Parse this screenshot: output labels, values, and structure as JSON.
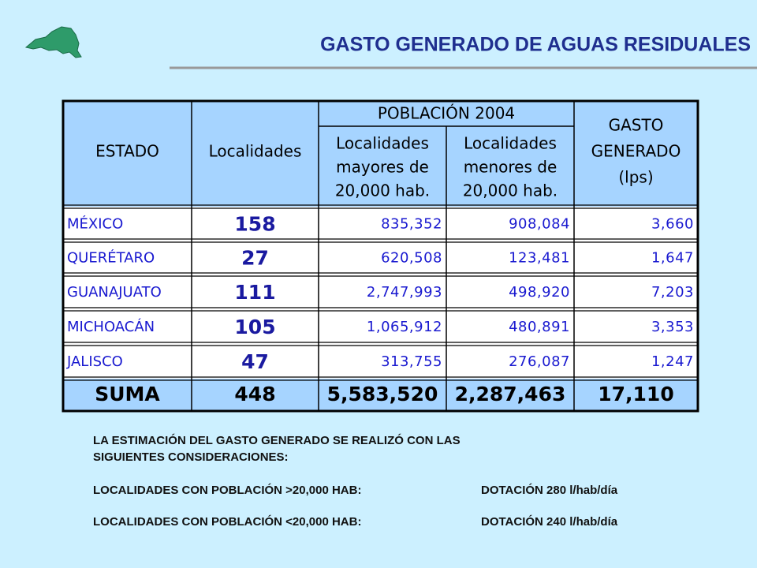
{
  "header": {
    "title": "GASTO GENERADO DE AGUAS RESIDUALES"
  },
  "table": {
    "columns": {
      "estado": "ESTADO",
      "localidades": "Localidades",
      "poblacion": "POBLACIÓN 2004",
      "mayores": [
        "Localidades",
        "mayores de",
        "20,000 hab."
      ],
      "menores": [
        "Localidades",
        "menores de",
        "20,000 hab."
      ],
      "gasto": [
        "GASTO",
        "GENERADO",
        "(lps)"
      ]
    },
    "rows": [
      [
        "MÉXICO",
        "158",
        "835,352",
        "908,084",
        "3,660"
      ],
      [
        "QUERÉTARO",
        "27",
        "620,508",
        "123,481",
        "1,647"
      ],
      [
        "GUANAJUATO",
        "111",
        "2,747,993",
        "498,920",
        "7,203"
      ],
      [
        "MICHOACÁN",
        "105",
        "1,065,912",
        "480,891",
        "3,353"
      ],
      [
        "JALISCO",
        "47",
        "313,755",
        "276,087",
        "1,247"
      ]
    ],
    "total": [
      "SUMA",
      "448",
      "5,583,520",
      "2,287,463",
      "17,110"
    ]
  },
  "notes": {
    "intro": [
      "LA ESTIMACIÓN DEL GASTO GENERADO SE REALIZÓ CON LAS",
      "SIGUIENTES CONSIDERACIONES:"
    ],
    "items": [
      [
        "LOCALIDADES CON POBLACIÓN >20,000 HAB:",
        "DOTACIÓN 280 l/hab/día"
      ],
      [
        "LOCALIDADES CON POBLACIÓN <20,000 HAB:",
        "DOTACIÓN 240 l/hab/día"
      ]
    ]
  }
}
